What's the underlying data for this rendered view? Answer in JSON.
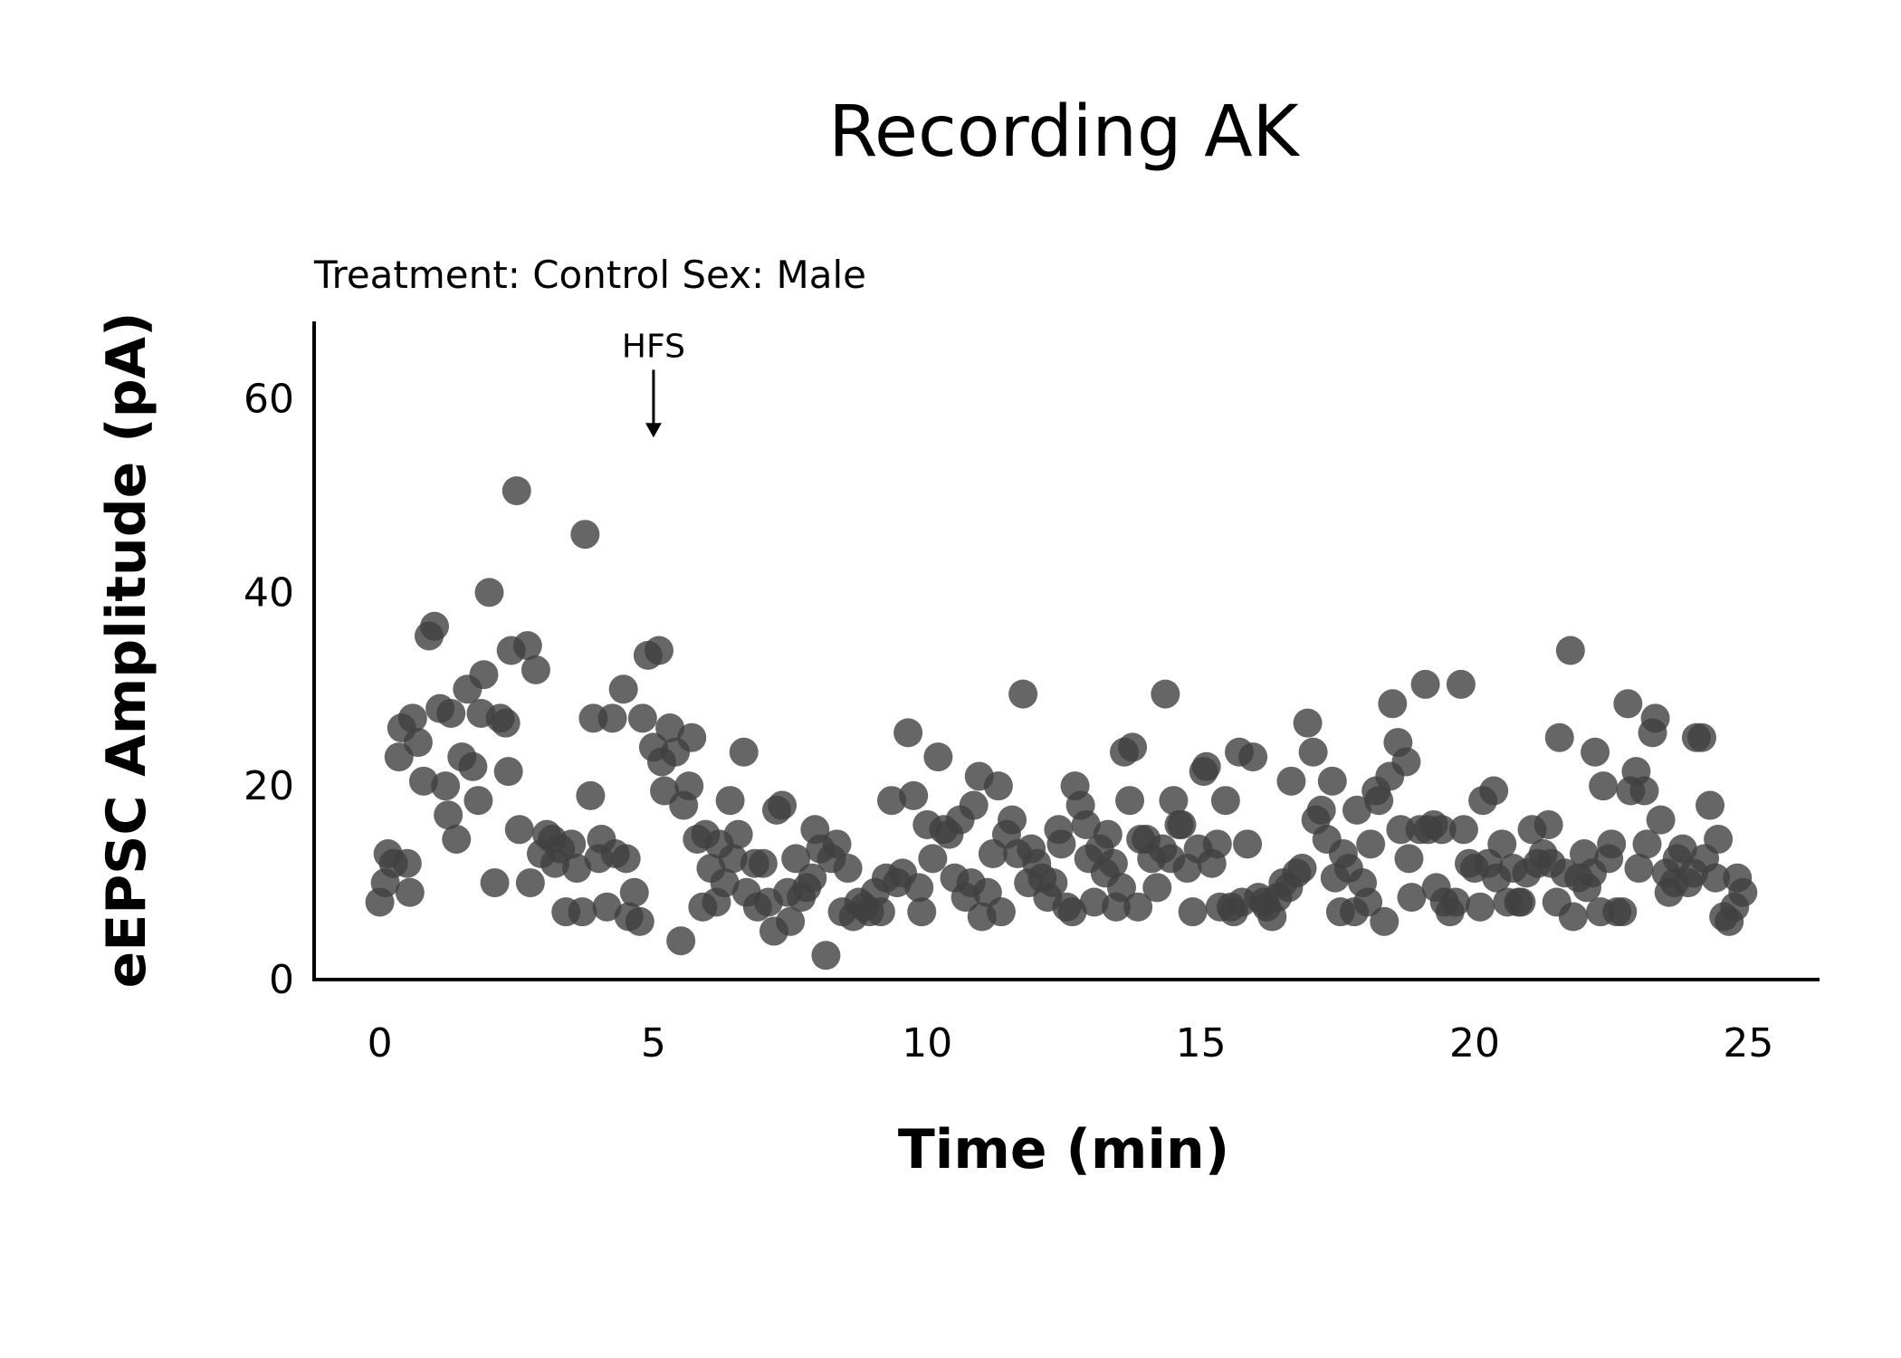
{
  "chart_data": {
    "type": "scatter",
    "title": "Recording AK",
    "subtitle": "Treatment: Control  Sex: Male",
    "xlabel": "Time (min)",
    "ylabel": "eEPSC Amplitude (pA)",
    "xlim": [
      -1.2,
      26.3
    ],
    "ylim": [
      0,
      68
    ],
    "x_ticks": [
      0,
      5,
      10,
      15,
      20,
      25
    ],
    "y_ticks": [
      0,
      20,
      40,
      60
    ],
    "x_tick_labels": [
      "0",
      "5",
      "10",
      "15",
      "20",
      "25"
    ],
    "y_tick_labels": [
      "0",
      "20",
      "40",
      "60"
    ],
    "grid": false,
    "legend": "none",
    "point_color": "#404040",
    "point_opacity": 0.8,
    "annotation": {
      "label": "HFS",
      "x": 5,
      "arrow_from_y": 63,
      "arrow_to_y": 56
    },
    "points": [
      [
        0.0,
        8
      ],
      [
        0.1,
        10
      ],
      [
        0.15,
        13
      ],
      [
        0.25,
        12
      ],
      [
        0.35,
        23
      ],
      [
        0.4,
        26
      ],
      [
        0.5,
        12
      ],
      [
        0.55,
        9
      ],
      [
        0.6,
        27
      ],
      [
        0.7,
        24.5
      ],
      [
        0.8,
        20.5
      ],
      [
        0.9,
        35.5
      ],
      [
        1.0,
        36.5
      ],
      [
        1.1,
        28
      ],
      [
        1.2,
        20
      ],
      [
        1.25,
        17
      ],
      [
        1.3,
        27.5
      ],
      [
        1.4,
        14.5
      ],
      [
        1.5,
        23
      ],
      [
        1.6,
        30
      ],
      [
        1.7,
        22
      ],
      [
        1.8,
        18.5
      ],
      [
        1.85,
        27.5
      ],
      [
        1.9,
        31.5
      ],
      [
        2.0,
        40
      ],
      [
        2.1,
        10
      ],
      [
        2.2,
        27
      ],
      [
        2.3,
        26.5
      ],
      [
        2.35,
        21.5
      ],
      [
        2.4,
        34
      ],
      [
        2.5,
        50.5
      ],
      [
        2.55,
        15.5
      ],
      [
        2.7,
        34.5
      ],
      [
        2.75,
        10
      ],
      [
        2.85,
        32
      ],
      [
        2.95,
        13
      ],
      [
        3.05,
        15
      ],
      [
        3.15,
        14.5
      ],
      [
        3.2,
        12
      ],
      [
        3.3,
        13.5
      ],
      [
        3.4,
        7
      ],
      [
        3.5,
        14
      ],
      [
        3.6,
        11.5
      ],
      [
        3.7,
        7
      ],
      [
        3.75,
        46
      ],
      [
        3.85,
        19
      ],
      [
        3.9,
        27
      ],
      [
        4.0,
        12.5
      ],
      [
        4.05,
        14.5
      ],
      [
        4.15,
        7.5
      ],
      [
        4.25,
        27
      ],
      [
        4.3,
        13
      ],
      [
        4.45,
        30
      ],
      [
        4.5,
        12.5
      ],
      [
        4.55,
        6.5
      ],
      [
        4.65,
        9
      ],
      [
        4.75,
        6
      ],
      [
        4.8,
        27
      ],
      [
        4.9,
        33.5
      ],
      [
        5.0,
        24
      ],
      [
        5.1,
        34
      ],
      [
        5.15,
        22.5
      ],
      [
        5.2,
        19.5
      ],
      [
        5.3,
        26
      ],
      [
        5.4,
        23.5
      ],
      [
        5.5,
        4
      ],
      [
        5.55,
        18
      ],
      [
        5.65,
        20
      ],
      [
        5.7,
        25
      ],
      [
        5.8,
        14.5
      ],
      [
        5.9,
        7.5
      ],
      [
        5.95,
        15
      ],
      [
        6.05,
        11.5
      ],
      [
        6.15,
        8
      ],
      [
        6.2,
        14
      ],
      [
        6.3,
        10
      ],
      [
        6.4,
        18.5
      ],
      [
        6.45,
        12.5
      ],
      [
        6.55,
        15
      ],
      [
        6.65,
        23.5
      ],
      [
        6.7,
        9
      ],
      [
        6.85,
        12
      ],
      [
        6.9,
        7.5
      ],
      [
        7.0,
        12
      ],
      [
        7.1,
        8
      ],
      [
        7.2,
        5
      ],
      [
        7.25,
        17.5
      ],
      [
        7.35,
        18
      ],
      [
        7.45,
        9
      ],
      [
        7.5,
        6
      ],
      [
        7.6,
        12.5
      ],
      [
        7.7,
        8.5
      ],
      [
        7.8,
        9.5
      ],
      [
        7.9,
        10.5
      ],
      [
        7.95,
        15.5
      ],
      [
        8.05,
        13.5
      ],
      [
        8.15,
        2.5
      ],
      [
        8.25,
        12.5
      ],
      [
        8.35,
        14
      ],
      [
        8.45,
        7
      ],
      [
        8.55,
        11.5
      ],
      [
        8.65,
        6.5
      ],
      [
        8.75,
        8
      ],
      [
        8.85,
        7.5
      ],
      [
        8.95,
        7
      ],
      [
        9.05,
        9
      ],
      [
        9.15,
        7
      ],
      [
        9.25,
        10.5
      ],
      [
        9.35,
        18.5
      ],
      [
        9.45,
        10
      ],
      [
        9.55,
        11
      ],
      [
        9.65,
        25.5
      ],
      [
        9.75,
        19
      ],
      [
        9.85,
        9.5
      ],
      [
        9.9,
        7
      ],
      [
        10.0,
        16
      ],
      [
        10.1,
        12.5
      ],
      [
        10.2,
        23
      ],
      [
        10.3,
        15.5
      ],
      [
        10.4,
        15
      ],
      [
        10.5,
        10.5
      ],
      [
        10.6,
        16.5
      ],
      [
        10.7,
        8.5
      ],
      [
        10.8,
        10
      ],
      [
        10.85,
        18
      ],
      [
        10.95,
        21
      ],
      [
        11.0,
        6.5
      ],
      [
        11.1,
        9
      ],
      [
        11.2,
        13
      ],
      [
        11.3,
        20
      ],
      [
        11.35,
        7
      ],
      [
        11.45,
        15
      ],
      [
        11.55,
        16.5
      ],
      [
        11.65,
        13
      ],
      [
        11.75,
        29.5
      ],
      [
        11.85,
        10
      ],
      [
        11.9,
        13.5
      ],
      [
        12.0,
        12
      ],
      [
        12.1,
        10.5
      ],
      [
        12.2,
        8.5
      ],
      [
        12.3,
        10
      ],
      [
        12.4,
        15.5
      ],
      [
        12.45,
        14
      ],
      [
        12.55,
        7.5
      ],
      [
        12.65,
        7
      ],
      [
        12.7,
        20
      ],
      [
        12.8,
        18
      ],
      [
        12.9,
        16
      ],
      [
        12.95,
        12.5
      ],
      [
        13.05,
        8
      ],
      [
        13.15,
        13.5
      ],
      [
        13.25,
        11
      ],
      [
        13.3,
        15
      ],
      [
        13.4,
        12
      ],
      [
        13.45,
        7.5
      ],
      [
        13.55,
        9.5
      ],
      [
        13.6,
        23.5
      ],
      [
        13.7,
        18.5
      ],
      [
        13.75,
        24
      ],
      [
        13.85,
        7.5
      ],
      [
        13.9,
        14.5
      ],
      [
        14.0,
        14.5
      ],
      [
        14.1,
        12.5
      ],
      [
        14.2,
        9.5
      ],
      [
        14.3,
        13.5
      ],
      [
        14.35,
        29.5
      ],
      [
        14.45,
        12.5
      ],
      [
        14.5,
        18.5
      ],
      [
        14.6,
        16
      ],
      [
        14.65,
        16
      ],
      [
        14.75,
        11.5
      ],
      [
        14.85,
        7
      ],
      [
        14.95,
        13.5
      ],
      [
        15.05,
        21.5
      ],
      [
        15.1,
        22
      ],
      [
        15.2,
        12
      ],
      [
        15.3,
        14
      ],
      [
        15.35,
        7.5
      ],
      [
        15.45,
        18.5
      ],
      [
        15.55,
        7.5
      ],
      [
        15.6,
        7
      ],
      [
        15.7,
        23.5
      ],
      [
        15.75,
        8
      ],
      [
        15.85,
        14
      ],
      [
        15.95,
        23
      ],
      [
        16.05,
        8.5
      ],
      [
        16.15,
        8
      ],
      [
        16.2,
        7.5
      ],
      [
        16.3,
        6.5
      ],
      [
        16.4,
        8.5
      ],
      [
        16.5,
        10
      ],
      [
        16.6,
        9.5
      ],
      [
        16.65,
        20.5
      ],
      [
        16.75,
        11
      ],
      [
        16.85,
        11.5
      ],
      [
        16.95,
        26.5
      ],
      [
        17.05,
        23.5
      ],
      [
        17.1,
        16.5
      ],
      [
        17.2,
        17.5
      ],
      [
        17.3,
        14.5
      ],
      [
        17.4,
        20.5
      ],
      [
        17.45,
        10.5
      ],
      [
        17.55,
        7
      ],
      [
        17.6,
        13
      ],
      [
        17.7,
        11.5
      ],
      [
        17.8,
        7
      ],
      [
        17.85,
        17.5
      ],
      [
        17.95,
        10
      ],
      [
        18.05,
        8
      ],
      [
        18.1,
        14
      ],
      [
        18.2,
        19.5
      ],
      [
        18.25,
        18.5
      ],
      [
        18.35,
        6
      ],
      [
        18.45,
        21
      ],
      [
        18.5,
        28.5
      ],
      [
        18.6,
        24.5
      ],
      [
        18.65,
        15.5
      ],
      [
        18.75,
        22.5
      ],
      [
        18.8,
        12.5
      ],
      [
        18.85,
        8.5
      ],
      [
        19.0,
        15.5
      ],
      [
        19.1,
        30.5
      ],
      [
        19.15,
        15.5
      ],
      [
        19.25,
        16
      ],
      [
        19.3,
        9.5
      ],
      [
        19.4,
        15.5
      ],
      [
        19.45,
        8
      ],
      [
        19.55,
        7
      ],
      [
        19.65,
        8
      ],
      [
        19.75,
        30.5
      ],
      [
        19.8,
        15.5
      ],
      [
        19.9,
        12
      ],
      [
        20.0,
        11.5
      ],
      [
        20.1,
        7.5
      ],
      [
        20.15,
        18.5
      ],
      [
        20.25,
        12
      ],
      [
        20.35,
        19.5
      ],
      [
        20.4,
        10.5
      ],
      [
        20.5,
        14
      ],
      [
        20.6,
        8
      ],
      [
        20.7,
        11.5
      ],
      [
        20.8,
        8
      ],
      [
        20.85,
        8
      ],
      [
        20.95,
        11
      ],
      [
        21.05,
        15.5
      ],
      [
        21.15,
        12
      ],
      [
        21.25,
        13
      ],
      [
        21.35,
        16
      ],
      [
        21.4,
        12
      ],
      [
        21.5,
        8
      ],
      [
        21.55,
        25
      ],
      [
        21.65,
        11
      ],
      [
        21.75,
        34
      ],
      [
        21.8,
        6.5
      ],
      [
        21.9,
        10.5
      ],
      [
        22.0,
        13
      ],
      [
        22.05,
        9.5
      ],
      [
        22.15,
        11
      ],
      [
        22.2,
        23.5
      ],
      [
        22.3,
        7
      ],
      [
        22.35,
        20
      ],
      [
        22.45,
        12.5
      ],
      [
        22.5,
        14
      ],
      [
        22.6,
        7
      ],
      [
        22.7,
        7
      ],
      [
        22.8,
        28.5
      ],
      [
        22.85,
        19.5
      ],
      [
        22.95,
        21.5
      ],
      [
        23.0,
        11.5
      ],
      [
        23.1,
        19.5
      ],
      [
        23.15,
        14
      ],
      [
        23.25,
        25.5
      ],
      [
        23.3,
        27
      ],
      [
        23.4,
        16.5
      ],
      [
        23.5,
        11
      ],
      [
        23.55,
        9
      ],
      [
        23.65,
        10
      ],
      [
        23.7,
        12.5
      ],
      [
        23.8,
        13.5
      ],
      [
        23.9,
        10
      ],
      [
        24.0,
        11
      ],
      [
        24.05,
        25
      ],
      [
        24.15,
        25
      ],
      [
        24.2,
        12.5
      ],
      [
        24.3,
        18
      ],
      [
        24.4,
        10.5
      ],
      [
        24.45,
        14.5
      ],
      [
        24.55,
        6.5
      ],
      [
        24.65,
        6
      ],
      [
        24.75,
        7.5
      ],
      [
        24.8,
        10.5
      ],
      [
        24.9,
        9
      ]
    ]
  }
}
